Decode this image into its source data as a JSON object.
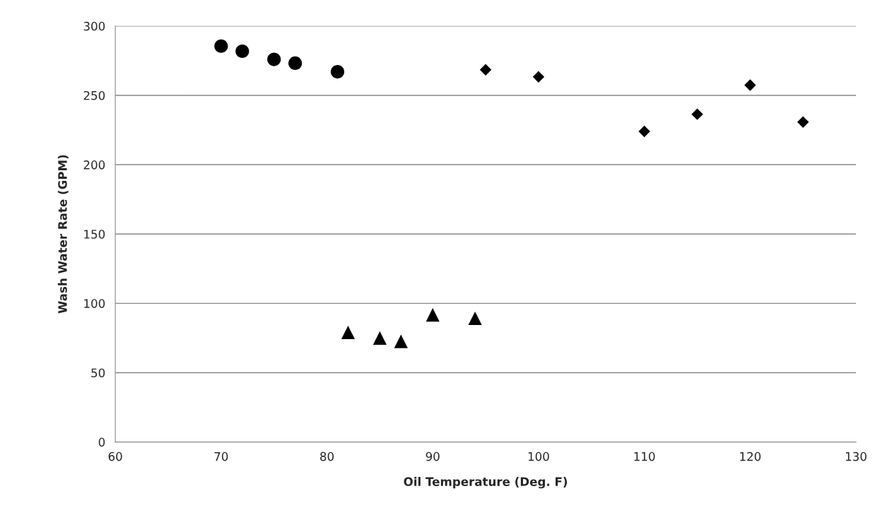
{
  "chart_data": {
    "type": "scatter",
    "xlabel": "Oil Temperature (Deg. F)",
    "ylabel": "Wash Water Rate (GPM)",
    "xlim": [
      60,
      130
    ],
    "xticks": [
      60,
      70,
      80,
      90,
      100,
      110,
      120,
      130
    ],
    "ylim": [
      0,
      300
    ],
    "yticks": [
      0,
      50,
      100,
      150,
      200,
      250,
      300
    ],
    "grid": "y",
    "legend": false,
    "series": [
      {
        "color": "#000000",
        "marker": "circle",
        "x": [
          70,
          72,
          75,
          77,
          81
        ],
        "values": [
          285.5,
          281.8,
          275.9,
          273.2,
          267
        ]
      },
      {
        "color": "#000000",
        "marker": "diamond",
        "x": [
          95,
          100,
          110,
          115,
          120,
          125
        ],
        "values": [
          268.4,
          263.3,
          224,
          236.4,
          257.4,
          230.7
        ]
      },
      {
        "color": "#000000",
        "marker": "triangle",
        "x": [
          82,
          85,
          87,
          90,
          94
        ],
        "values": [
          79,
          75,
          72.6,
          91.7,
          89.2
        ]
      }
    ]
  }
}
